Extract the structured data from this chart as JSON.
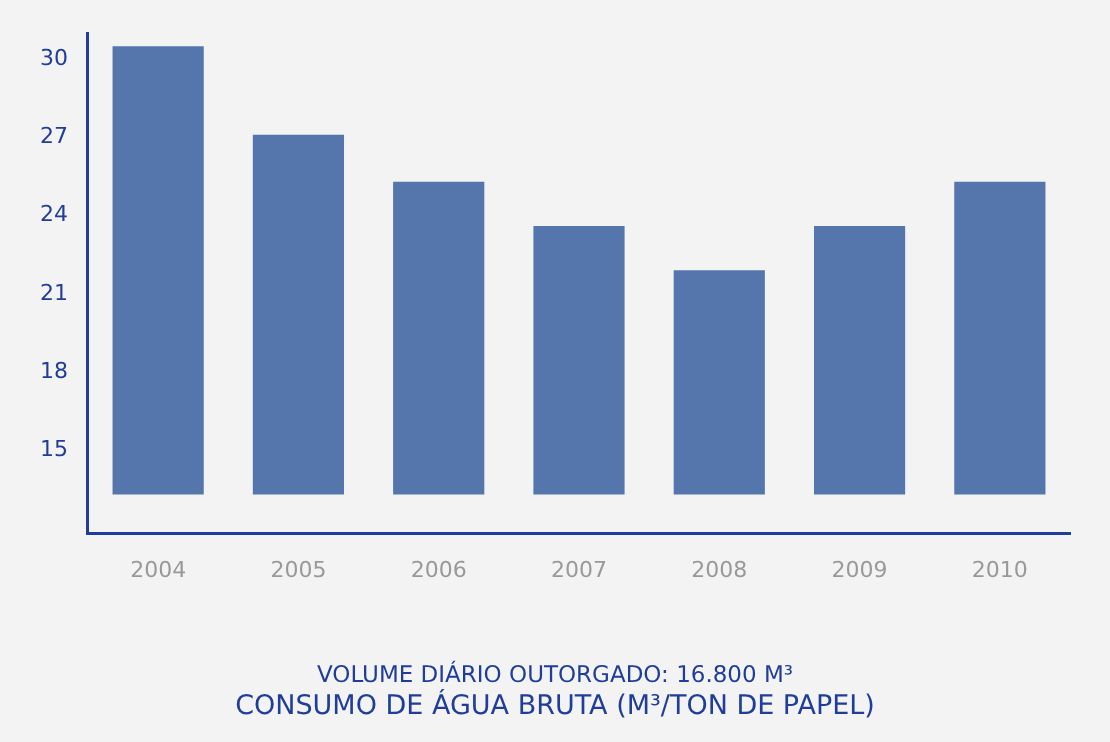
{
  "chart_data": {
    "type": "bar",
    "title": "CONSUMO DE ÁGUA BRUTA (M³/TON DE PAPEL)",
    "subtitle": "VOLUME DIÁRIO OUTORGADO: 16.800 M³",
    "categories": [
      "2004",
      "2005",
      "2006",
      "2007",
      "2008",
      "2009",
      "2010"
    ],
    "base": [
      13.3,
      13.3,
      13.3,
      13.3,
      13.3,
      13.3,
      13.3
    ],
    "values": [
      17.2,
      13.8,
      12.0,
      10.3,
      8.6,
      10.3,
      12.0
    ],
    "color": "#5576ad",
    "ylim": [
      11.8,
      31
    ],
    "yticks": [
      15,
      18,
      21,
      24,
      27,
      30
    ],
    "grid": false,
    "legend": false
  }
}
